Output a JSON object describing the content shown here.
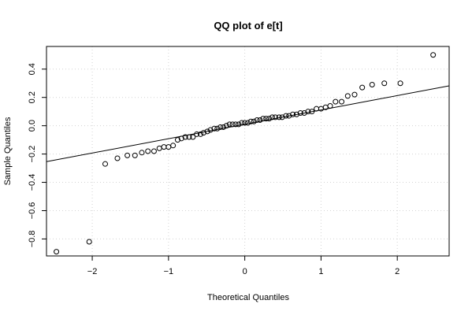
{
  "chart_data": {
    "type": "scatter",
    "title": "QQ plot of e[t]",
    "xlabel": "Theoretical Quantiles",
    "ylabel": "Sample Quantiles",
    "xlim": [
      -2.6,
      2.68
    ],
    "ylim": [
      -0.92,
      0.56
    ],
    "x_ticks": [
      -2,
      -1,
      0,
      1,
      2
    ],
    "x_tick_labels": [
      "−2",
      "−1",
      "0",
      "1",
      "2"
    ],
    "y_ticks": [
      -0.8,
      -0.6,
      -0.4,
      -0.2,
      0.0,
      0.2,
      0.4
    ],
    "y_tick_labels": [
      "−0.8",
      "−0.6",
      "−0.4",
      "−0.2",
      "0.0",
      "0.2",
      "0.4"
    ],
    "grid": true,
    "reference_line": {
      "intercept": 0.01,
      "slope": 0.1015
    },
    "points": [
      {
        "x": -2.47,
        "y": -0.89
      },
      {
        "x": -2.04,
        "y": -0.82
      },
      {
        "x": -1.83,
        "y": -0.27
      },
      {
        "x": -1.67,
        "y": -0.23
      },
      {
        "x": -1.54,
        "y": -0.21
      },
      {
        "x": -1.44,
        "y": -0.21
      },
      {
        "x": -1.35,
        "y": -0.19
      },
      {
        "x": -1.27,
        "y": -0.18
      },
      {
        "x": -1.19,
        "y": -0.18
      },
      {
        "x": -1.12,
        "y": -0.16
      },
      {
        "x": -1.06,
        "y": -0.15
      },
      {
        "x": -1.0,
        "y": -0.15
      },
      {
        "x": -0.94,
        "y": -0.14
      },
      {
        "x": -0.88,
        "y": -0.1
      },
      {
        "x": -0.83,
        "y": -0.09
      },
      {
        "x": -0.78,
        "y": -0.08
      },
      {
        "x": -0.73,
        "y": -0.08
      },
      {
        "x": -0.68,
        "y": -0.08
      },
      {
        "x": -0.63,
        "y": -0.06
      },
      {
        "x": -0.58,
        "y": -0.06
      },
      {
        "x": -0.54,
        "y": -0.05
      },
      {
        "x": -0.49,
        "y": -0.04
      },
      {
        "x": -0.45,
        "y": -0.03
      },
      {
        "x": -0.4,
        "y": -0.02
      },
      {
        "x": -0.36,
        "y": -0.02
      },
      {
        "x": -0.32,
        "y": -0.01
      },
      {
        "x": -0.28,
        "y": -0.01
      },
      {
        "x": -0.24,
        "y": 0.0
      },
      {
        "x": -0.2,
        "y": 0.01
      },
      {
        "x": -0.16,
        "y": 0.01
      },
      {
        "x": -0.12,
        "y": 0.01
      },
      {
        "x": -0.08,
        "y": 0.01
      },
      {
        "x": -0.04,
        "y": 0.02
      },
      {
        "x": 0.0,
        "y": 0.02
      },
      {
        "x": 0.04,
        "y": 0.02
      },
      {
        "x": 0.08,
        "y": 0.03
      },
      {
        "x": 0.12,
        "y": 0.03
      },
      {
        "x": 0.16,
        "y": 0.04
      },
      {
        "x": 0.2,
        "y": 0.04
      },
      {
        "x": 0.24,
        "y": 0.05
      },
      {
        "x": 0.28,
        "y": 0.05
      },
      {
        "x": 0.32,
        "y": 0.05
      },
      {
        "x": 0.36,
        "y": 0.06
      },
      {
        "x": 0.4,
        "y": 0.06
      },
      {
        "x": 0.45,
        "y": 0.06
      },
      {
        "x": 0.49,
        "y": 0.06
      },
      {
        "x": 0.54,
        "y": 0.07
      },
      {
        "x": 0.58,
        "y": 0.07
      },
      {
        "x": 0.63,
        "y": 0.08
      },
      {
        "x": 0.68,
        "y": 0.08
      },
      {
        "x": 0.73,
        "y": 0.09
      },
      {
        "x": 0.78,
        "y": 0.09
      },
      {
        "x": 0.83,
        "y": 0.1
      },
      {
        "x": 0.88,
        "y": 0.1
      },
      {
        "x": 0.94,
        "y": 0.12
      },
      {
        "x": 1.0,
        "y": 0.12
      },
      {
        "x": 1.06,
        "y": 0.13
      },
      {
        "x": 1.12,
        "y": 0.14
      },
      {
        "x": 1.19,
        "y": 0.17
      },
      {
        "x": 1.27,
        "y": 0.17
      },
      {
        "x": 1.35,
        "y": 0.21
      },
      {
        "x": 1.44,
        "y": 0.22
      },
      {
        "x": 1.54,
        "y": 0.27
      },
      {
        "x": 1.67,
        "y": 0.29
      },
      {
        "x": 1.83,
        "y": 0.3
      },
      {
        "x": 2.04,
        "y": 0.3
      },
      {
        "x": 2.47,
        "y": 0.5
      }
    ]
  }
}
